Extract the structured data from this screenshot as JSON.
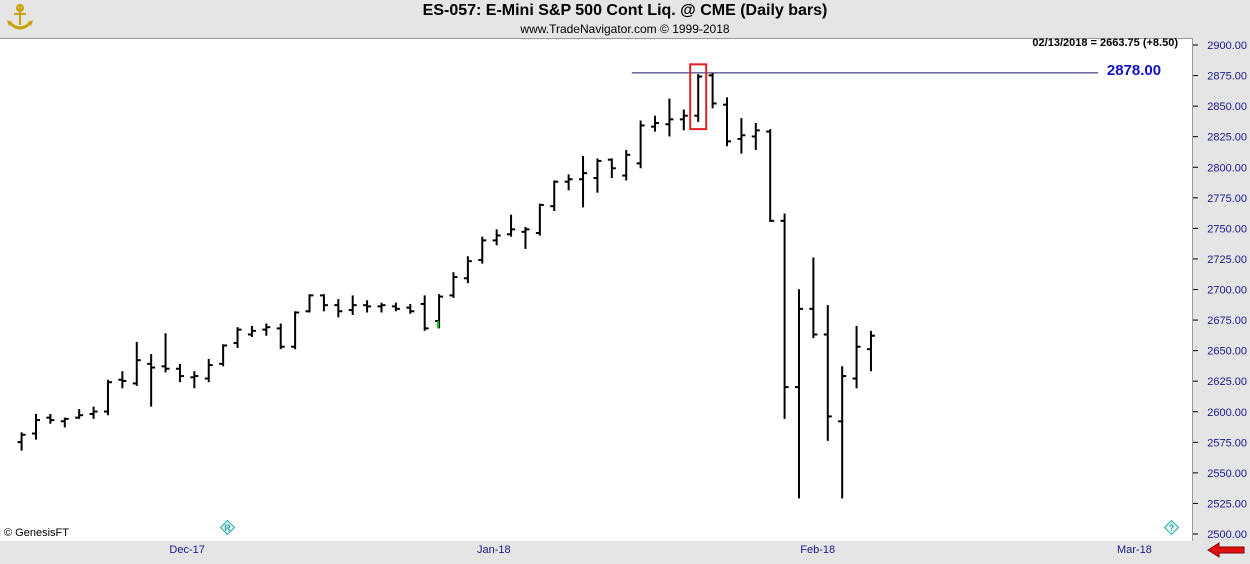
{
  "header": {
    "title": "ES-057:  E-Mini S&P 500 Cont Liq. @ CME  (Daily bars)",
    "subtitle": "www.TradeNavigator.com © 1999-2018",
    "logo_icon": "trade-navigator-logo-icon"
  },
  "readout": "02/13/2018 = 2663.75 (+8.50)",
  "horizontal_line_label": "2878.00",
  "credit": "© GenesisFT",
  "icons": {
    "registered": "registered-mark-icon",
    "help": "help-question-icon",
    "scroll": "scroll-left-arrow-icon"
  },
  "colors": {
    "bar": "#000000",
    "last_bar": "#00cc00",
    "axis_text": "#1a1a8c",
    "line_label": "#1010c8",
    "highlight_box": "#e02020",
    "arrow": "#e01010"
  },
  "chart_data": {
    "type": "ohlc",
    "title": "ES-057:  E-Mini S&P 500 Cont Liq. @ CME  (Daily bars)",
    "ylim": [
      2500,
      2900
    ],
    "y_ticks": [
      "2500.00",
      "2525.00",
      "2550.00",
      "2575.00",
      "2600.00",
      "2625.00",
      "2650.00",
      "2675.00",
      "2700.00",
      "2725.00",
      "2750.00",
      "2775.00",
      "2800.00",
      "2825.00",
      "2850.00",
      "2875.00",
      "2900.00"
    ],
    "x_ticks": [
      "Dec-17",
      "Jan-18",
      "Feb-18",
      "Mar-18"
    ],
    "x_tick_index": [
      11.5,
      32.8,
      55.3,
      77.3
    ],
    "x_range": [
      -1.5,
      81.3
    ],
    "grid": false,
    "horizontal_line": {
      "value": 2878.0,
      "label": "2878.00",
      "from_index": 46
    },
    "highlight_box": {
      "index": 47,
      "low": 2832,
      "high": 2885
    },
    "bars": [
      {
        "i": 0,
        "o": 2576,
        "h": 2584,
        "l": 2569,
        "c": 2582
      },
      {
        "i": 1,
        "o": 2583,
        "h": 2599,
        "l": 2578,
        "c": 2594
      },
      {
        "i": 2,
        "o": 2596,
        "h": 2599,
        "l": 2591,
        "c": 2594
      },
      {
        "i": 3,
        "o": 2593,
        "h": 2596,
        "l": 2588,
        "c": 2595
      },
      {
        "i": 4,
        "o": 2596,
        "h": 2603,
        "l": 2595,
        "c": 2598
      },
      {
        "i": 5,
        "o": 2599,
        "h": 2605,
        "l": 2595,
        "c": 2601
      },
      {
        "i": 6,
        "o": 2601,
        "h": 2627,
        "l": 2598,
        "c": 2625
      },
      {
        "i": 7,
        "o": 2627,
        "h": 2634,
        "l": 2620,
        "c": 2626
      },
      {
        "i": 8,
        "o": 2624,
        "h": 2658,
        "l": 2622,
        "c": 2643
      },
      {
        "i": 9,
        "o": 2640,
        "h": 2648,
        "l": 2605,
        "c": 2637
      },
      {
        "i": 10,
        "o": 2638,
        "h": 2665,
        "l": 2633,
        "c": 2636
      },
      {
        "i": 11,
        "o": 2636,
        "h": 2640,
        "l": 2625,
        "c": 2630
      },
      {
        "i": 12,
        "o": 2629,
        "h": 2634,
        "l": 2620,
        "c": 2630
      },
      {
        "i": 13,
        "o": 2628,
        "h": 2644,
        "l": 2625,
        "c": 2639
      },
      {
        "i": 14,
        "o": 2640,
        "h": 2656,
        "l": 2638,
        "c": 2655
      },
      {
        "i": 15,
        "o": 2657,
        "h": 2670,
        "l": 2653,
        "c": 2668
      },
      {
        "i": 16,
        "o": 2664,
        "h": 2671,
        "l": 2662,
        "c": 2667
      },
      {
        "i": 17,
        "o": 2668,
        "h": 2673,
        "l": 2663,
        "c": 2670
      },
      {
        "i": 18,
        "o": 2669,
        "h": 2673,
        "l": 2652,
        "c": 2654
      },
      {
        "i": 19,
        "o": 2654,
        "h": 2683,
        "l": 2652,
        "c": 2682
      },
      {
        "i": 20,
        "o": 2683,
        "h": 2697,
        "l": 2682,
        "c": 2696
      },
      {
        "i": 21,
        "o": 2696,
        "h": 2697,
        "l": 2683,
        "c": 2688
      },
      {
        "i": 22,
        "o": 2688,
        "h": 2693,
        "l": 2678,
        "c": 2683
      },
      {
        "i": 23,
        "o": 2684,
        "h": 2696,
        "l": 2680,
        "c": 2688
      },
      {
        "i": 24,
        "o": 2688,
        "h": 2692,
        "l": 2682,
        "c": 2687
      },
      {
        "i": 25,
        "o": 2687,
        "h": 2690,
        "l": 2682,
        "c": 2688
      },
      {
        "i": 26,
        "o": 2687,
        "h": 2690,
        "l": 2683,
        "c": 2685
      },
      {
        "i": 27,
        "o": 2686,
        "h": 2689,
        "l": 2681,
        "c": 2683
      },
      {
        "i": 28,
        "o": 2689,
        "h": 2696,
        "l": 2667,
        "c": 2669
      },
      {
        "i": 29,
        "o": 2675,
        "h": 2697,
        "l": 2669,
        "c": 2695
      },
      {
        "i": 30,
        "o": 2696,
        "h": 2715,
        "l": 2694,
        "c": 2711
      },
      {
        "i": 31,
        "o": 2710,
        "h": 2728,
        "l": 2706,
        "c": 2724
      },
      {
        "i": 32,
        "o": 2725,
        "h": 2744,
        "l": 2722,
        "c": 2741
      },
      {
        "i": 33,
        "o": 2741,
        "h": 2750,
        "l": 2737,
        "c": 2745
      },
      {
        "i": 34,
        "o": 2746,
        "h": 2762,
        "l": 2744,
        "c": 2750
      },
      {
        "i": 35,
        "o": 2748,
        "h": 2752,
        "l": 2734,
        "c": 2750
      },
      {
        "i": 36,
        "o": 2747,
        "h": 2771,
        "l": 2745,
        "c": 2770
      },
      {
        "i": 37,
        "o": 2769,
        "h": 2790,
        "l": 2765,
        "c": 2789
      },
      {
        "i": 38,
        "o": 2789,
        "h": 2795,
        "l": 2782,
        "c": 2791
      },
      {
        "i": 39,
        "o": 2791,
        "h": 2810,
        "l": 2768,
        "c": 2796
      },
      {
        "i": 40,
        "o": 2792,
        "h": 2808,
        "l": 2780,
        "c": 2806
      },
      {
        "i": 41,
        "o": 2807,
        "h": 2808,
        "l": 2792,
        "c": 2800
      },
      {
        "i": 42,
        "o": 2794,
        "h": 2815,
        "l": 2790,
        "c": 2811
      },
      {
        "i": 43,
        "o": 2804,
        "h": 2839,
        "l": 2800,
        "c": 2835
      },
      {
        "i": 44,
        "o": 2834,
        "h": 2843,
        "l": 2830,
        "c": 2837
      },
      {
        "i": 45,
        "o": 2836,
        "h": 2857,
        "l": 2826,
        "c": 2840
      },
      {
        "i": 46,
        "o": 2840,
        "h": 2848,
        "l": 2831,
        "c": 2843
      },
      {
        "i": 47,
        "o": 2843,
        "h": 2877,
        "l": 2838,
        "c": 2875
      },
      {
        "i": 48,
        "o": 2876,
        "h": 2878,
        "l": 2849,
        "c": 2853
      },
      {
        "i": 49,
        "o": 2852,
        "h": 2858,
        "l": 2818,
        "c": 2822
      },
      {
        "i": 50,
        "o": 2824,
        "h": 2841,
        "l": 2812,
        "c": 2827
      },
      {
        "i": 51,
        "o": 2826,
        "h": 2837,
        "l": 2815,
        "c": 2831
      },
      {
        "i": 52,
        "o": 2830,
        "h": 2832,
        "l": 2756,
        "c": 2757
      },
      {
        "i": 53,
        "o": 2757,
        "h": 2763,
        "l": 2595,
        "c": 2621
      },
      {
        "i": 54,
        "o": 2621,
        "h": 2701,
        "l": 2530,
        "c": 2685
      },
      {
        "i": 55,
        "o": 2685,
        "h": 2727,
        "l": 2661,
        "c": 2664
      },
      {
        "i": 56,
        "o": 2664,
        "h": 2688,
        "l": 2577,
        "c": 2597
      },
      {
        "i": 57,
        "o": 2593,
        "h": 2638,
        "l": 2530,
        "c": 2630
      },
      {
        "i": 58,
        "o": 2628,
        "h": 2671,
        "l": 2620,
        "c": 2654
      },
      {
        "i": 59,
        "o": 2652,
        "h": 2667,
        "l": 2634,
        "c": 2663
      }
    ]
  }
}
